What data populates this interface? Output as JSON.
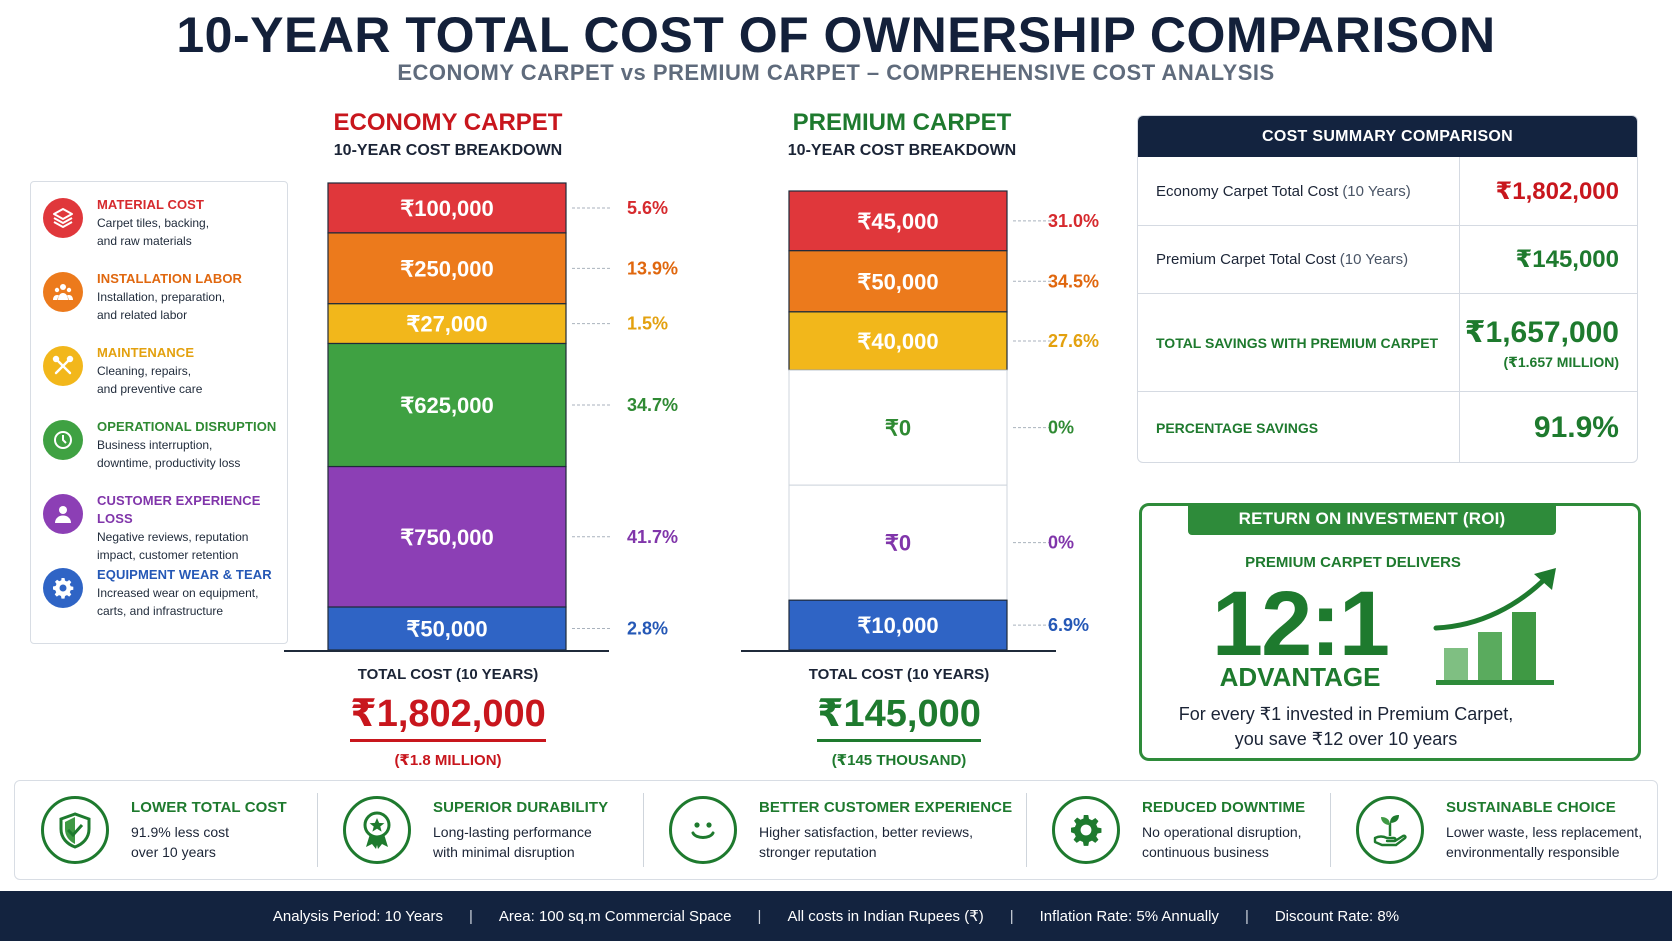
{
  "title": "10-YEAR TOTAL COST OF OWNERSHIP COMPARISON",
  "subtitle": "ECONOMY CARPET vs PREMIUM CARPET – COMPREHENSIVE COST ANALYSIS",
  "legend": [
    {
      "name": "MATERIAL COST",
      "desc1": "Carpet tiles, backing,",
      "desc2": "and raw materials",
      "color": "#e0373b",
      "icon": "layers-icon"
    },
    {
      "name": "INSTALLATION LABOR",
      "desc1": "Installation, preparation,",
      "desc2": "and related labor",
      "color": "#ec7a1c",
      "icon": "workers-icon"
    },
    {
      "name": "MAINTENANCE",
      "desc1": "Cleaning, repairs,",
      "desc2": "and preventive care",
      "color": "#f2b71b",
      "icon": "tools-icon"
    },
    {
      "name": "OPERATIONAL DISRUPTION",
      "desc1": "Business interruption,",
      "desc2": "downtime, productivity loss",
      "color": "#3fa142",
      "icon": "clock-icon"
    },
    {
      "name": "CUSTOMER EXPERIENCE LOSS",
      "desc1": "Negative reviews, reputation",
      "desc2": "impact, customer retention",
      "color": "#8c3fb5",
      "icon": "user-icon"
    },
    {
      "name": "EQUIPMENT WEAR & TEAR",
      "desc1": "Increased wear on equipment,",
      "desc2": "carts, and infrastructure",
      "color": "#2f64c5",
      "icon": "gear-icon"
    }
  ],
  "colors": {
    "material": "#e0373b",
    "installation": "#ec7a1c",
    "maintenance": "#f2b71b",
    "disruption": "#3fa142",
    "customer": "#8c3fb5",
    "equipment": "#2f64c5",
    "economy_accent": "#c8161d",
    "premium_accent": "#1e7a2e",
    "navy": "#13233f"
  },
  "chart_data": [
    {
      "type": "bar",
      "stacked": true,
      "title": "ECONOMY CARPET",
      "subtitle": "10-YEAR COST BREAKDOWN",
      "segments": [
        {
          "name": "MATERIAL COST",
          "value": 100000,
          "label": "₹100,000",
          "percent": "5.6%"
        },
        {
          "name": "INSTALLATION LABOR",
          "value": 250000,
          "label": "₹250,000",
          "percent": "13.9%"
        },
        {
          "name": "MAINTENANCE",
          "value": 27000,
          "label": "₹27,000",
          "percent": "1.5%"
        },
        {
          "name": "OPERATIONAL DISRUPTION",
          "value": 625000,
          "label": "₹625,000",
          "percent": "34.7%"
        },
        {
          "name": "CUSTOMER EXPERIENCE LOSS",
          "value": 750000,
          "label": "₹750,000",
          "percent": "41.7%"
        },
        {
          "name": "EQUIPMENT WEAR & TEAR",
          "value": 50000,
          "label": "₹50,000",
          "percent": "2.8%"
        }
      ],
      "total_caption": "TOTAL COST (10 YEARS)",
      "total": "₹1,802,000",
      "total_sub": "(₹1.8 MILLION)"
    },
    {
      "type": "bar",
      "stacked": true,
      "title": "PREMIUM CARPET",
      "subtitle": "10-YEAR COST BREAKDOWN",
      "segments": [
        {
          "name": "MATERIAL COST",
          "value": 45000,
          "label": "₹45,000",
          "percent": "31.0%"
        },
        {
          "name": "INSTALLATION LABOR",
          "value": 50000,
          "label": "₹50,000",
          "percent": "34.5%"
        },
        {
          "name": "MAINTENANCE",
          "value": 40000,
          "label": "₹40,000",
          "percent": "27.6%"
        },
        {
          "name": "OPERATIONAL DISRUPTION",
          "value": 0,
          "label": "₹0",
          "percent": "0%"
        },
        {
          "name": "CUSTOMER EXPERIENCE LOSS",
          "value": 0,
          "label": "₹0",
          "percent": "0%"
        },
        {
          "name": "EQUIPMENT WEAR & TEAR",
          "value": 10000,
          "label": "₹10,000",
          "percent": "6.9%"
        }
      ],
      "total_caption": "TOTAL COST (10 YEARS)",
      "total": "₹145,000",
      "total_sub": "(₹145 THOUSAND)"
    }
  ],
  "summary": {
    "header": "COST SUMMARY COMPARISON",
    "row1_label": "Economy Carpet Total Cost",
    "row1_paren": "(10 Years)",
    "row1_value": "₹1,802,000",
    "row2_label": "Premium Carpet Total Cost",
    "row2_paren": "(10 Years)",
    "row2_value": "₹145,000",
    "row3_label": "TOTAL SAVINGS WITH PREMIUM CARPET",
    "row3_value": "₹1,657,000",
    "row3_sub": "(₹1.657 MILLION)",
    "row4_label": "PERCENTAGE SAVINGS",
    "row4_value": "91.9%"
  },
  "roi": {
    "header": "RETURN ON INVESTMENT (ROI)",
    "sub": "PREMIUM CARPET DELIVERS",
    "ratio": "12:1",
    "advantage": "ADVANTAGE",
    "desc1": "For every ₹1 invested in Premium Carpet,",
    "desc2": "you save ₹12 over 10 years",
    "icon": "growth-chart-icon"
  },
  "benefits": [
    {
      "title": "LOWER TOTAL COST",
      "desc1": "91.9% less cost",
      "desc2": "over 10 years",
      "icon": "shield-icon"
    },
    {
      "title": "SUPERIOR DURABILITY",
      "desc1": "Long-lasting performance",
      "desc2": "with minimal disruption",
      "icon": "award-icon"
    },
    {
      "title": "BETTER CUSTOMER EXPERIENCE",
      "desc1": "Higher satisfaction, better reviews,",
      "desc2": "stronger reputation",
      "icon": "smile-icon"
    },
    {
      "title": "REDUCED DOWNTIME",
      "desc1": "No operational disruption,",
      "desc2": "continuous business",
      "icon": "gear-icon"
    },
    {
      "title": "SUSTAINABLE CHOICE",
      "desc1": "Lower waste, less replacement,",
      "desc2": "environmentally responsible",
      "icon": "plant-hand-icon"
    }
  ],
  "footer": [
    "Analysis Period: 10 Years",
    "Area: 100 sq.m Commercial Space",
    "All costs in Indian Rupees (₹)",
    "Inflation Rate: 5% Annually",
    "Discount Rate: 8%"
  ]
}
